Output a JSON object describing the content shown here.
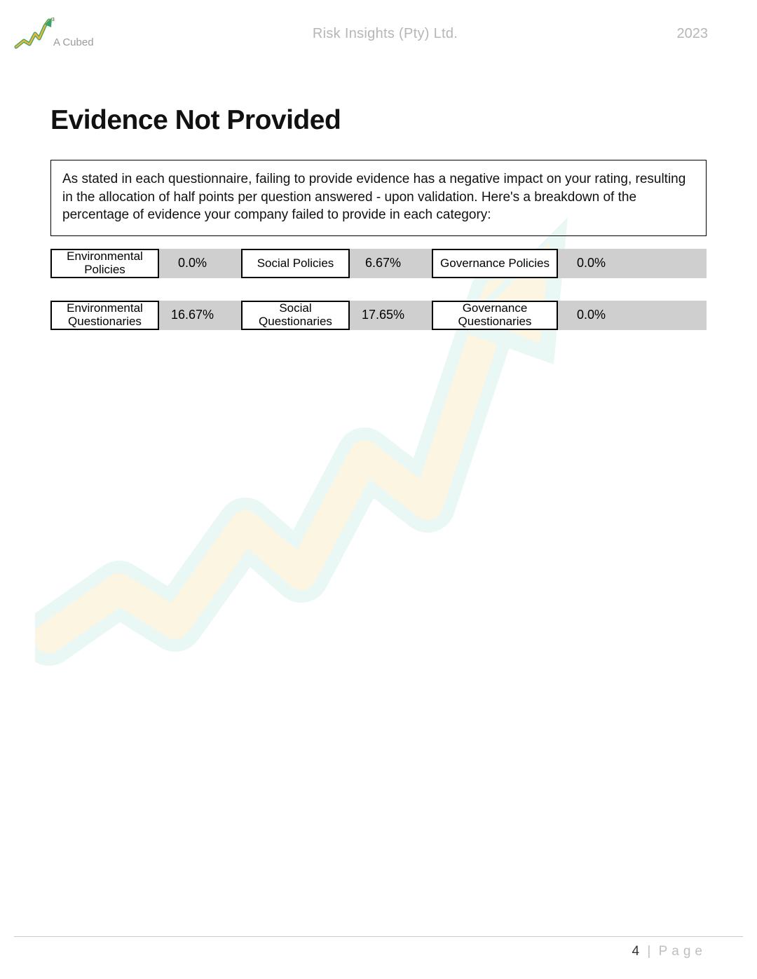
{
  "header": {
    "logo_text": "A Cubed",
    "company": "Risk Insights (Pty) Ltd.",
    "year": "2023"
  },
  "title": "Evidence Not Provided",
  "intro": "As stated in each questionnaire, failing to provide evidence has a negative impact on your rating, resulting in the allocation of half points per question answered - upon validation. Here's a breakdown of the percentage of evidence your company failed to provide in each category:",
  "rows": [
    {
      "cells": [
        {
          "label": "Environmental Policies",
          "value": "0.0%"
        },
        {
          "label": "Social Policies",
          "value": "6.67%"
        },
        {
          "label": "Governance Policies",
          "value": "0.0%"
        }
      ]
    },
    {
      "cells": [
        {
          "label": "Environmental Questionaries",
          "value": "16.67%"
        },
        {
          "label": "Social Questionaries",
          "value": "17.65%"
        },
        {
          "label": "Governance Questionaries",
          "value": "0.0%"
        }
      ]
    }
  ],
  "layout": {
    "label_widths": [
      155,
      155,
      180
    ],
    "value_widths": [
      95,
      95,
      95
    ],
    "gap_before_label": [
      0,
      22,
      22
    ],
    "row_bg": "#cfcfcf",
    "label_bg": "#ffffff",
    "border_color": "#000000"
  },
  "footer": {
    "page_number": "4",
    "page_label": "Page"
  },
  "watermark": {
    "arrow_color_outer": "#8fd9cc",
    "arrow_color_inner": "#f4c95d"
  }
}
